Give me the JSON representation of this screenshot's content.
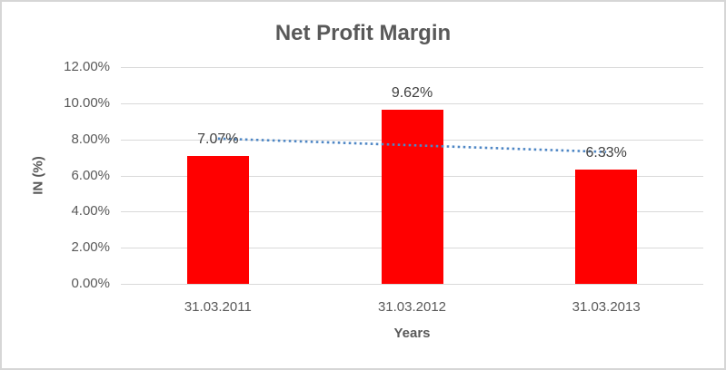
{
  "frame": {
    "background": "#ffffff",
    "border_color": "#d6d6d6"
  },
  "chart_data": {
    "type": "bar",
    "title": "Net Profit Margin",
    "categories": [
      "31.03.2011",
      "31.03.2012",
      "31.03.2013"
    ],
    "series": [
      {
        "name": "Net Profit Margin",
        "values": [
          7.07,
          9.62,
          6.33
        ],
        "color": "#ff0000"
      }
    ],
    "data_labels": [
      "7.07%",
      "9.62%",
      "6.33%"
    ],
    "xlabel": "Years",
    "ylabel": "IN (%)",
    "ylim": [
      0,
      12
    ],
    "ytick_step": 2,
    "ytick_labels": [
      "0.00%",
      "2.00%",
      "4.00%",
      "6.00%",
      "8.00%",
      "10.00%",
      "12.00%"
    ],
    "grid": "horizontal",
    "legend": "none",
    "trendline": {
      "type": "linear",
      "style": "dotted",
      "color": "#4f87c5"
    },
    "colors": {
      "title": "#595959",
      "axis_text": "#595959",
      "data_label_text": "#404040",
      "gridline": "#d9d9d9",
      "bar": "#ff0000"
    }
  }
}
